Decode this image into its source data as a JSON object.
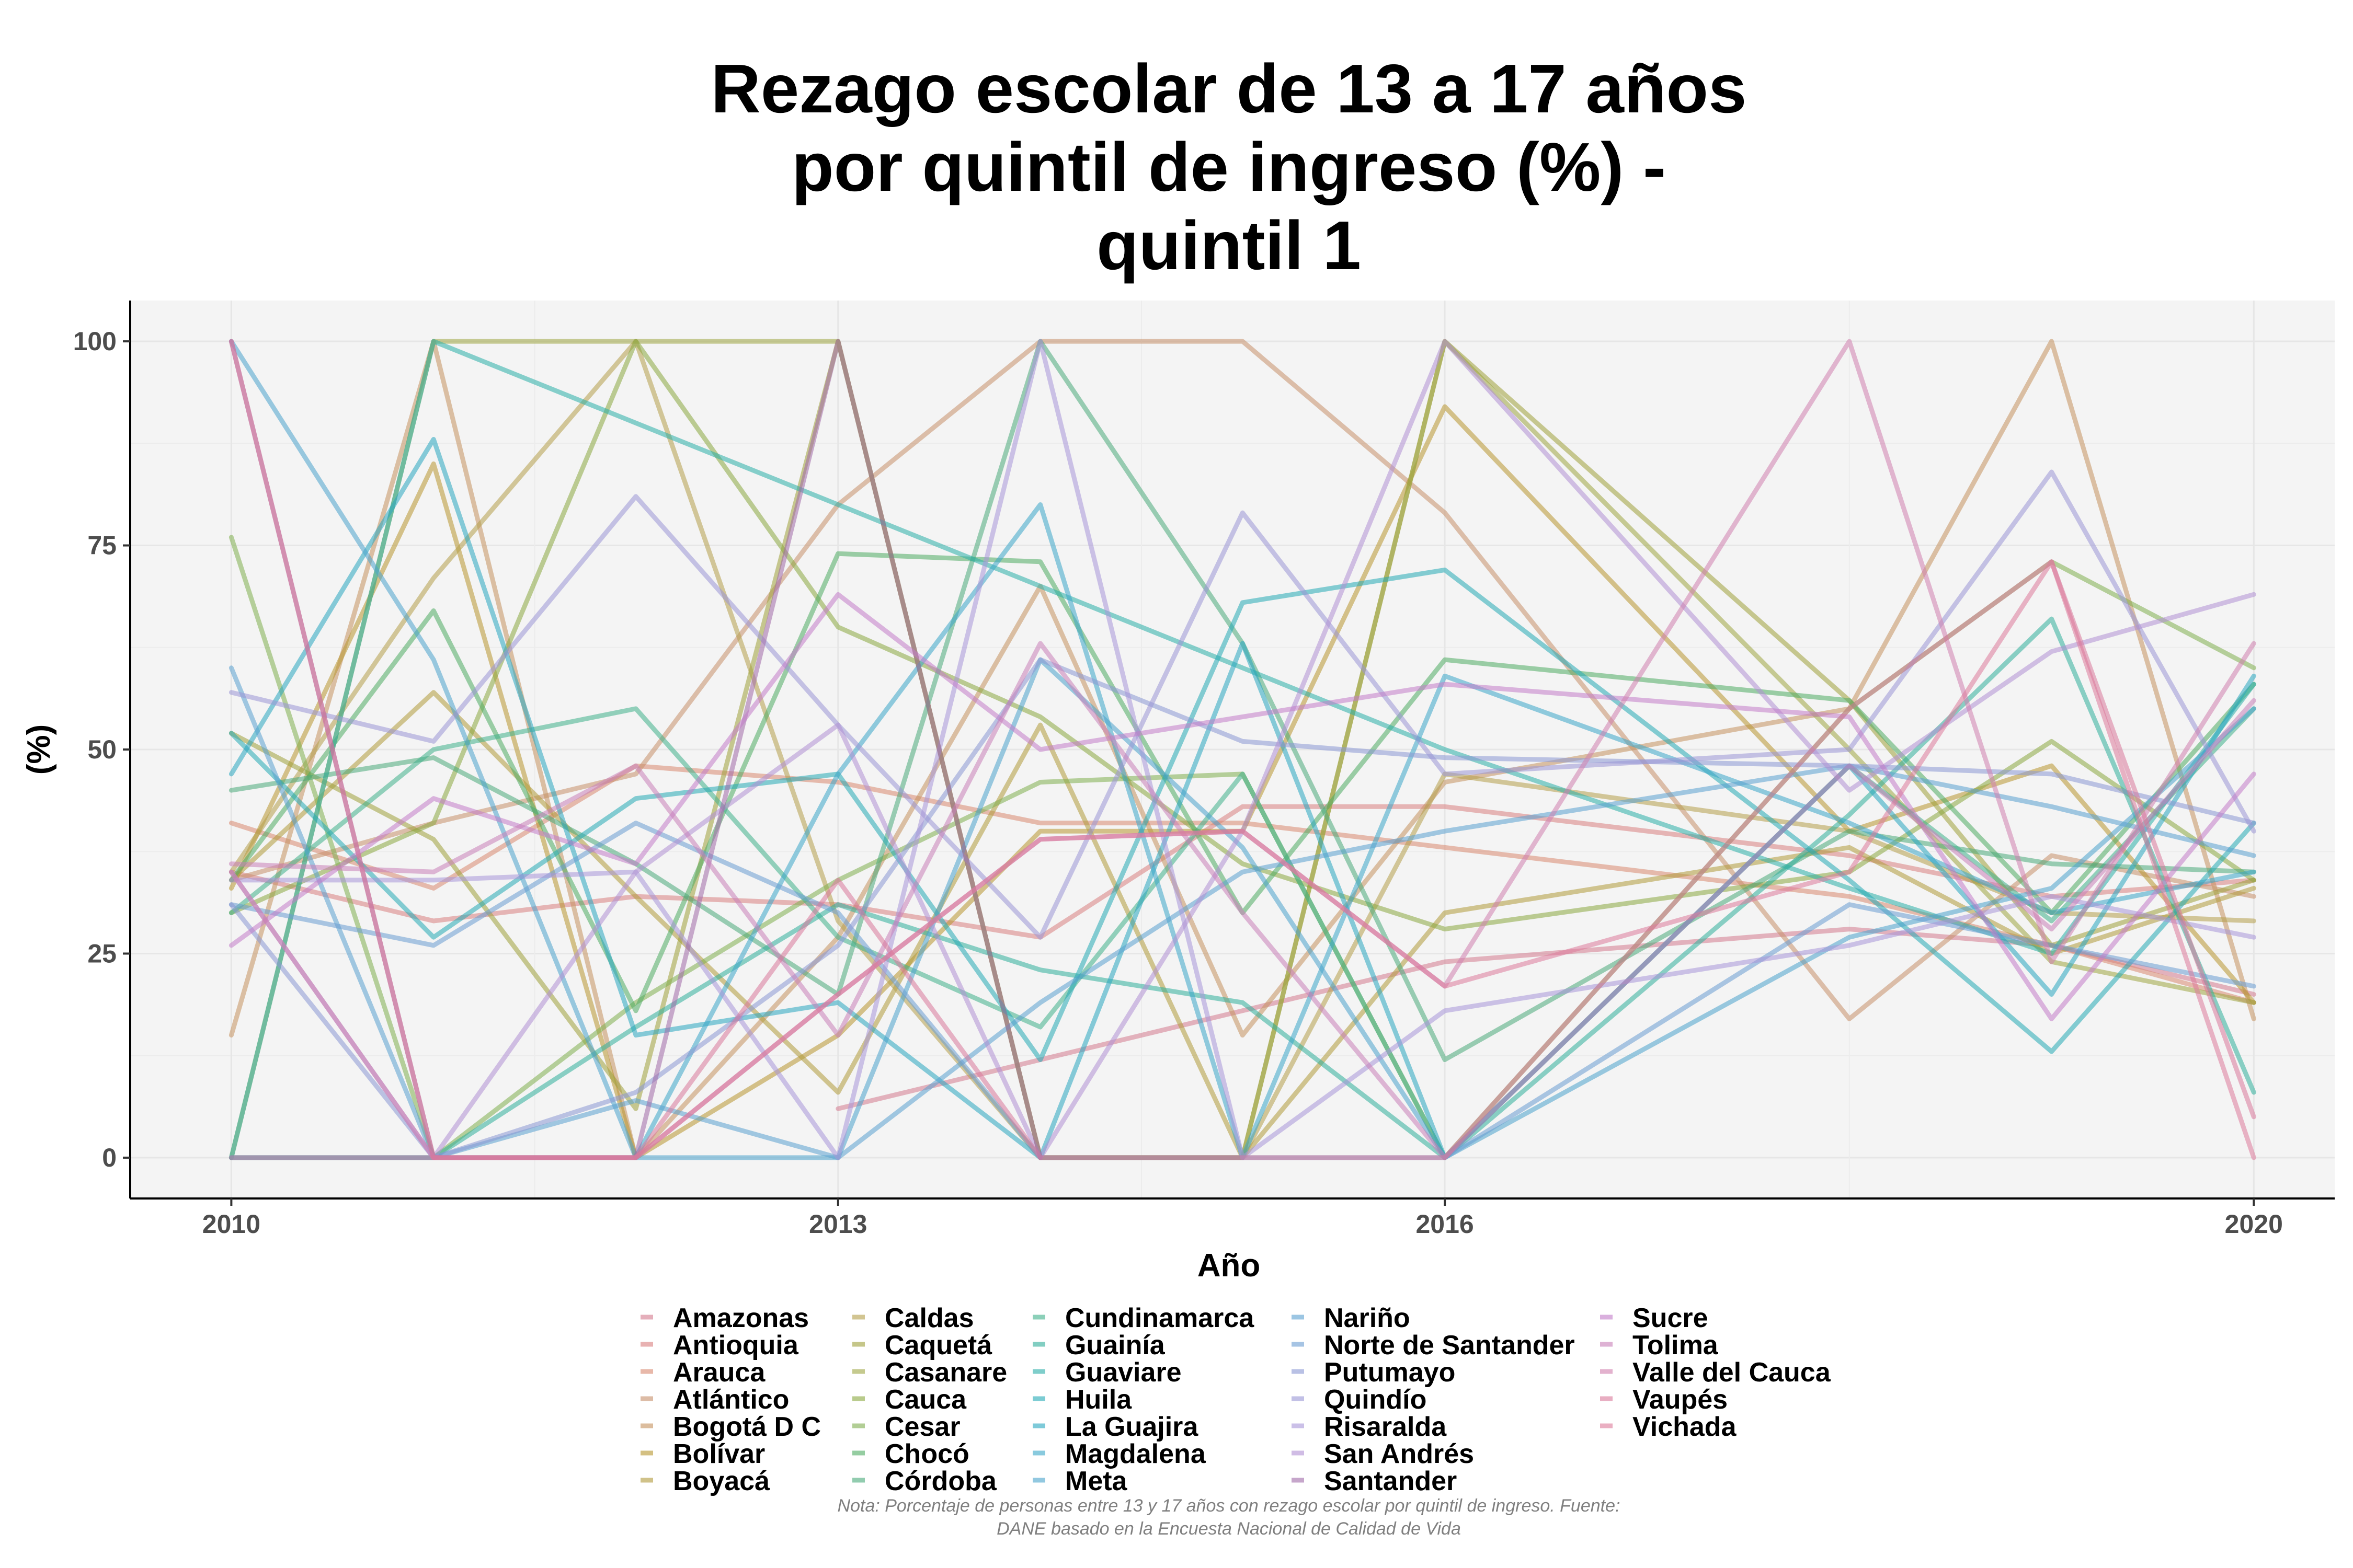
{
  "chart_data": {
    "type": "line",
    "title": [
      "Rezago escolar de 13 a 17 años",
      "por quintil de ingreso (%) -",
      "quintil 1"
    ],
    "xlabel": "Año",
    "ylabel": "(%)",
    "xlim": [
      2009.5,
      2020.4
    ],
    "ylim": [
      -5,
      105
    ],
    "xticks": [
      2010,
      2013,
      2016,
      2020
    ],
    "yticks": [
      0,
      25,
      50,
      75,
      100
    ],
    "x": [
      2010,
      2011,
      2012,
      2013,
      2014,
      2015,
      2016,
      2018,
      2019,
      2020
    ],
    "grid": true,
    "legend_position": "bottom",
    "note": [
      "Nota: Porcentaje de personas entre 13 y 17 años con rezago escolar por quintil de ingreso. Fuente:",
      "DANE basado en la Encuesta Nacional de Calidad de Vida"
    ],
    "series": [
      {
        "name": "Amazonas",
        "color": "#d47a8e",
        "values": [
          0,
          null,
          null,
          6,
          12,
          18,
          24,
          28,
          26,
          20
        ]
      },
      {
        "name": "Antioquia",
        "color": "#d97f7f",
        "values": [
          35,
          29,
          32,
          31,
          27,
          43,
          43,
          37,
          32,
          34
        ]
      },
      {
        "name": "Arauca",
        "color": "#d98870",
        "values": [
          41,
          33,
          48,
          46,
          41,
          41,
          38,
          32,
          26,
          19
        ]
      },
      {
        "name": "Atlántico",
        "color": "#c78f6a",
        "values": [
          34,
          41,
          47,
          80,
          100,
          100,
          79,
          17,
          37,
          32
        ]
      },
      {
        "name": "Bogotá D C",
        "color": "#c4915e",
        "values": [
          15,
          100,
          0,
          27,
          70,
          15,
          46,
          55,
          100,
          17
        ]
      },
      {
        "name": "Bolívar",
        "color": "#b8962f",
        "values": [
          33,
          85,
          0,
          15,
          40,
          40,
          92,
          40,
          48,
          19
        ]
      },
      {
        "name": "Boyacá",
        "color": "#b09a3a",
        "values": [
          34,
          57,
          32,
          8,
          53,
          0,
          30,
          38,
          25,
          33
        ]
      },
      {
        "name": "Caldas",
        "color": "#b49e4a",
        "values": [
          35,
          71,
          100,
          29,
          0,
          0,
          47,
          40,
          30,
          29
        ]
      },
      {
        "name": "Caquetá",
        "color": "#9fa03a",
        "values": [
          52,
          39,
          6,
          100,
          0,
          0,
          100,
          56,
          26,
          34
        ]
      },
      {
        "name": "Casanare",
        "color": "#9fa642",
        "values": [
          0,
          100,
          100,
          100,
          0,
          0,
          100,
          50,
          24,
          19
        ]
      },
      {
        "name": "Cauca",
        "color": "#8aa83f",
        "values": [
          30,
          41,
          100,
          65,
          54,
          36,
          28,
          35,
          51,
          34
        ]
      },
      {
        "name": "Cesar",
        "color": "#7fae4f",
        "values": [
          76,
          0,
          19,
          34,
          46,
          47,
          0,
          55,
          73,
          60
        ]
      },
      {
        "name": "Chocó",
        "color": "#4fab62",
        "values": [
          34,
          67,
          18,
          74,
          73,
          30,
          61,
          56,
          30,
          58
        ]
      },
      {
        "name": "Córdoba",
        "color": "#4aaa7a",
        "values": [
          45,
          49,
          36,
          20,
          100,
          63,
          12,
          40,
          36,
          35
        ]
      },
      {
        "name": "Cundinamarca",
        "color": "#3fb08a",
        "values": [
          30,
          50,
          55,
          27,
          16,
          47,
          0,
          48,
          29,
          55
        ]
      },
      {
        "name": "Guainía",
        "color": "#2fae9a",
        "values": [
          0,
          0,
          16,
          31,
          23,
          19,
          0,
          42,
          66,
          8
        ]
      },
      {
        "name": "Guaviare",
        "color": "#2aaea8",
        "values": [
          0,
          100,
          90,
          80,
          70,
          60,
          50,
          33,
          25,
          58
        ]
      },
      {
        "name": "Huila",
        "color": "#25aab5",
        "values": [
          52,
          27,
          44,
          47,
          12,
          68,
          72,
          34,
          13,
          41
        ]
      },
      {
        "name": "La Guajira",
        "color": "#28a6c0",
        "values": [
          47,
          88,
          15,
          19,
          0,
          63,
          0,
          48,
          20,
          59
        ]
      },
      {
        "name": "Magdalena",
        "color": "#3aa6c8",
        "values": [
          0,
          0,
          0,
          47,
          80,
          0,
          59,
          41,
          30,
          35
        ]
      },
      {
        "name": "Meta",
        "color": "#4aa3cc",
        "values": [
          100,
          61,
          0,
          0,
          61,
          38,
          0,
          27,
          33,
          55
        ]
      },
      {
        "name": "Nariño",
        "color": "#5aa0d0",
        "values": [
          60,
          0,
          7,
          0,
          19,
          35,
          40,
          48,
          43,
          37
        ]
      },
      {
        "name": "Norte de Santander",
        "color": "#6a9cd2",
        "values": [
          31,
          26,
          41,
          30,
          0,
          0,
          0,
          31,
          26,
          21
        ]
      },
      {
        "name": "Putumayo",
        "color": "#8a98d4",
        "values": [
          31,
          0,
          8,
          26,
          61,
          51,
          49,
          48,
          47,
          41
        ]
      },
      {
        "name": "Quindío",
        "color": "#9a96d6",
        "values": [
          57,
          51,
          81,
          53,
          27,
          79,
          47,
          50,
          84,
          40
        ]
      },
      {
        "name": "Risaralda",
        "color": "#a896d8",
        "values": [
          34,
          34,
          35,
          0,
          100,
          0,
          18,
          26,
          32,
          27
        ]
      },
      {
        "name": "San Andrés",
        "color": "#b08fd4",
        "values": [
          35,
          0,
          35,
          53,
          0,
          40,
          100,
          45,
          62,
          69
        ]
      },
      {
        "name": "Santander",
        "color": "#a06aa8",
        "values": [
          100,
          0,
          0,
          100,
          0,
          null,
          null,
          null,
          null,
          null
        ]
      },
      {
        "name": "Sucre",
        "color": "#c27cc8",
        "values": [
          26,
          44,
          36,
          69,
          50,
          54,
          58,
          54,
          17,
          47
        ]
      },
      {
        "name": "Tolima",
        "color": "#c87fb8",
        "values": [
          36,
          35,
          48,
          15,
          63,
          30,
          0,
          48,
          28,
          56
        ]
      },
      {
        "name": "Valle del Cauca",
        "color": "#d07fae",
        "values": [
          35,
          0,
          0,
          20,
          39,
          40,
          21,
          100,
          24,
          63
        ]
      },
      {
        "name": "Vaupés",
        "color": "#d8789a",
        "values": [
          0,
          0,
          0,
          34,
          0,
          0,
          0,
          55,
          73,
          5
        ]
      },
      {
        "name": "Vichada",
        "color": "#dc7a9a",
        "values": [
          100,
          0,
          0,
          20,
          39,
          40,
          21,
          35,
          73,
          0
        ]
      }
    ]
  }
}
